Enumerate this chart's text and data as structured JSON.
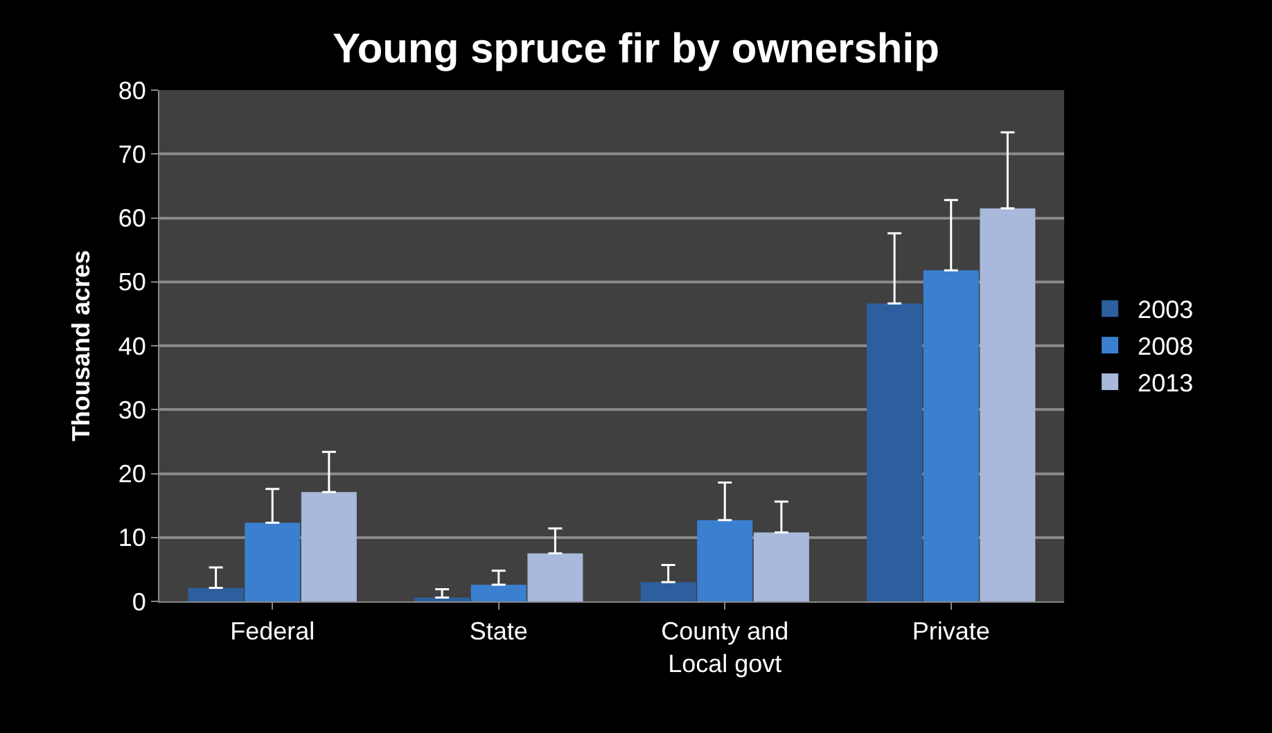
{
  "chart_data": {
    "type": "bar",
    "title": "Young spruce fir by ownership",
    "ylabel": "Thousand acres",
    "categories": [
      "Federal",
      "State",
      "County and\nLocal govt",
      "Private"
    ],
    "series": [
      {
        "name": "2003",
        "color": "#2d5f9e",
        "values": [
          2.1,
          0.6,
          3.0,
          46.6
        ],
        "errors": [
          [
            2.1,
            5.3
          ],
          [
            0.6,
            1.9
          ],
          [
            3.0,
            5.7
          ],
          [
            46.6,
            57.6
          ]
        ]
      },
      {
        "name": "2008",
        "color": "#3b7fd0",
        "values": [
          12.3,
          2.6,
          12.7,
          51.8
        ],
        "errors": [
          [
            12.3,
            17.6
          ],
          [
            2.6,
            4.8
          ],
          [
            12.7,
            18.6
          ],
          [
            51.8,
            62.8
          ]
        ]
      },
      {
        "name": "2013",
        "color": "#a8b9db",
        "values": [
          17.1,
          7.5,
          10.8,
          61.5
        ],
        "errors": [
          [
            17.1,
            23.4
          ],
          [
            7.5,
            11.4
          ],
          [
            10.8,
            15.6
          ],
          [
            61.5,
            73.4
          ]
        ]
      }
    ],
    "ylim": [
      0,
      80
    ],
    "yticks": [
      0,
      10,
      20,
      30,
      40,
      50,
      60,
      70,
      80
    ],
    "grid": "y",
    "legend": "right"
  }
}
